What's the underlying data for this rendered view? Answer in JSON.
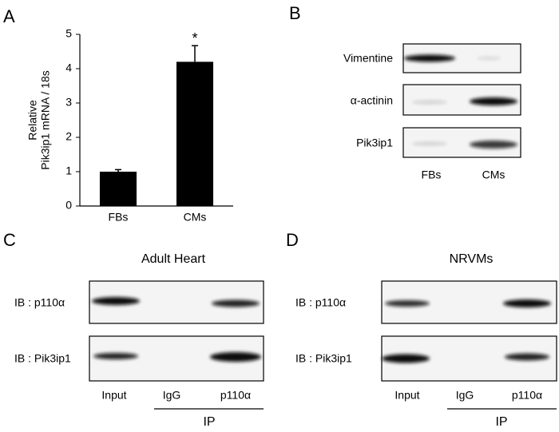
{
  "chart_data": {
    "type": "bar",
    "ylabel": [
      "Relative",
      "Pik3ip1 mRNA / 18s"
    ],
    "categories": [
      "FBs",
      "CMs"
    ],
    "values": [
      1.0,
      4.2
    ],
    "errors": [
      0.06,
      0.47
    ],
    "color": "#000000",
    "annotations": [
      {
        "text": "*",
        "x": "CMs"
      }
    ],
    "ylim": [
      0,
      5
    ],
    "yticks": [
      0,
      1,
      2,
      3,
      4,
      5
    ]
  },
  "panel_labels": [
    "A",
    "B",
    "C",
    "D"
  ],
  "blot_b": {
    "rows": [
      "Vimentine",
      "α-actinin",
      "Pik3ip1"
    ],
    "lanes": [
      "FBs",
      "CMs"
    ]
  },
  "blot_c": {
    "title": "Adult Heart",
    "rows": [
      "IB : p110α",
      "IB : Pik3ip1"
    ],
    "lanes": [
      "Input",
      "IgG",
      "p110α"
    ],
    "group": "IP"
  },
  "blot_d": {
    "title": "NRVMs",
    "rows": [
      "IB : p110α",
      "IB : Pik3ip1"
    ],
    "lanes": [
      "Input",
      "IgG",
      "p110α"
    ],
    "group": "IP"
  }
}
